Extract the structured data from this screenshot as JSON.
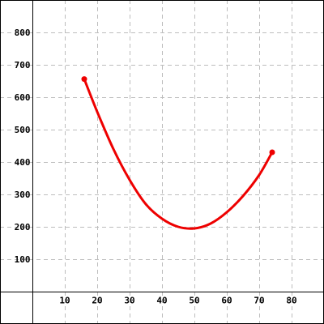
{
  "chart_data": {
    "type": "line",
    "title": "",
    "xlabel": "",
    "ylabel": "",
    "xlim": [
      -10,
      90
    ],
    "ylim": [
      -100,
      900
    ],
    "x_ticks": [
      10,
      20,
      30,
      40,
      50,
      60,
      70,
      80
    ],
    "y_ticks": [
      100,
      200,
      300,
      400,
      500,
      600,
      700,
      800
    ],
    "x_tick_labels": [
      "10",
      "20",
      "30",
      "40",
      "50",
      "60",
      "70",
      "80"
    ],
    "y_tick_labels": [
      "100",
      "200",
      "300",
      "400",
      "500",
      "600",
      "700",
      "800"
    ],
    "grid": true,
    "series": [
      {
        "color": "#ee0000",
        "x": [
          16,
          20,
          25,
          30,
          35,
          40,
          45,
          50,
          55,
          60,
          65,
          70,
          74
        ],
        "y": [
          656,
          555,
          440,
          345,
          270,
          225,
          200,
          195,
          210,
          245,
          295,
          360,
          430
        ],
        "endpoint_markers": true
      }
    ]
  }
}
